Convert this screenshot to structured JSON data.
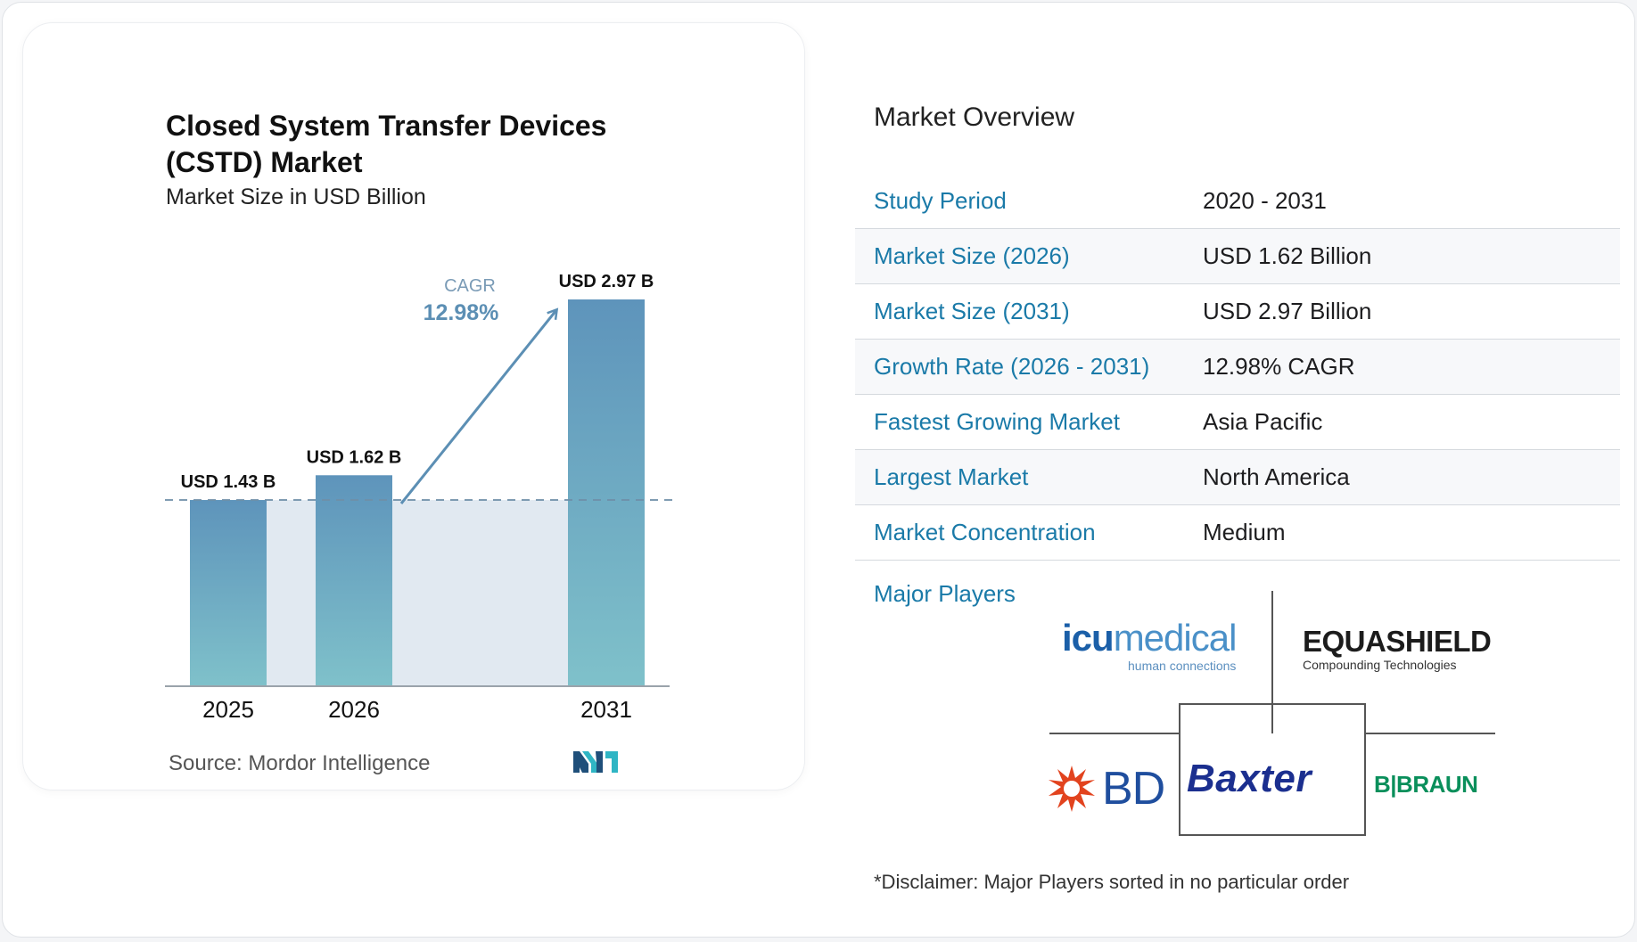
{
  "chart_data": {
    "type": "bar",
    "title_line1": "Closed System Transfer Devices",
    "title_line2": "(CSTD) Market",
    "subtitle": "Market Size in USD Billion",
    "categories": [
      "2025",
      "2026",
      "2031"
    ],
    "values": [
      1.43,
      1.62,
      2.97
    ],
    "data_labels": [
      "USD 1.43 B",
      "USD 1.62 B",
      "USD 2.97 B"
    ],
    "cagr_label": "CAGR",
    "cagr_value": "12.98%",
    "ylim": [
      0,
      2.97
    ],
    "bar_color_top": "#5e94bb",
    "bar_color_bottom": "#7fc1ca",
    "source": "Source:  Mordor Intelligence"
  },
  "overview": {
    "title": "Market Overview",
    "rows": [
      {
        "label": "Study Period",
        "value": "2020 - 2031"
      },
      {
        "label": "Market Size (2026)",
        "value": "USD 1.62 Billion"
      },
      {
        "label": "Market Size (2031)",
        "value": "USD 2.97 Billion"
      },
      {
        "label": "Growth Rate (2026 - 2031)",
        "value": "12.98% CAGR"
      },
      {
        "label": "Fastest Growing Market",
        "value": "Asia Pacific"
      },
      {
        "label": "Largest Market",
        "value": "North America"
      },
      {
        "label": "Market Concentration",
        "value": "Medium"
      }
    ]
  },
  "players": {
    "title": "Major Players",
    "icu_bold": "icu",
    "icu_light": "medical",
    "icu_tagline": "human connections",
    "equashield": "EQUASHIELD",
    "equashield_tagline": "Compounding Technologies",
    "bd": "BD",
    "baxter": "Baxter",
    "braun": "B|BRAUN"
  },
  "disclaimer": "*Disclaimer: Major Players sorted in no particular order",
  "colors": {
    "accent": "#1a7aa8",
    "arrow": "#5c8fb4",
    "shade": "#e1e9f1"
  }
}
